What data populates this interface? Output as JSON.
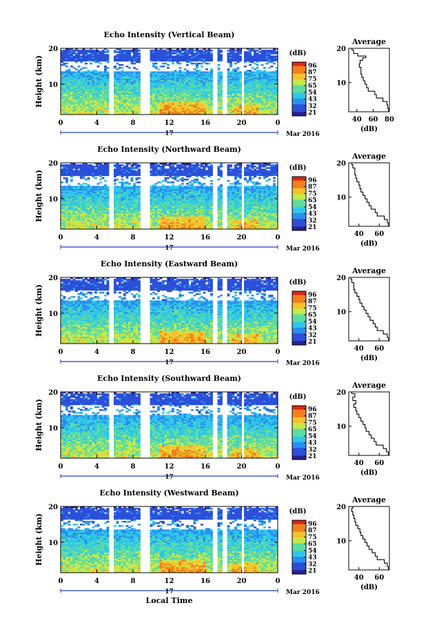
{
  "chart_data": [
    {
      "type": "heatmap",
      "title": "Echo Intensity (Vertical Beam)",
      "ylabel": "Height (km)",
      "x_ticks": [
        "0",
        "4",
        "8",
        "12",
        "16",
        "20",
        "0"
      ],
      "y_ticks": [
        "20",
        "10"
      ],
      "date_label": "17",
      "month_label": "Mar 2016",
      "xlim": [
        0,
        24
      ],
      "ylim": [
        1.5,
        20
      ],
      "colorbar_unit": "(dB)",
      "colorbar_ticks": [
        "96",
        "87",
        "75",
        "65",
        "54",
        "43",
        "32",
        "21"
      ],
      "data_gaps_hours": [
        [
          5.4,
          5.9
        ],
        [
          8.9,
          9.9
        ],
        [
          16.8,
          17.2
        ],
        [
          17.8,
          18.3
        ],
        [
          19.9,
          20.3
        ]
      ],
      "profile": {
        "title": "Average",
        "xlabel": "(dB)",
        "x_ticks": [
          "40",
          "60",
          "80"
        ],
        "xlim": [
          30,
          80
        ],
        "y_ticks": [
          "20",
          "10"
        ],
        "heights": [
          2,
          3,
          4,
          5,
          6,
          7,
          8,
          9,
          10,
          11,
          12,
          13,
          14,
          15,
          16,
          17,
          17.5,
          18,
          19,
          20
        ],
        "values": [
          79,
          78,
          77,
          72,
          64,
          62,
          54,
          52,
          50,
          48,
          46,
          45,
          45,
          43,
          44,
          47,
          51,
          41,
          36,
          34
        ]
      }
    },
    {
      "type": "heatmap",
      "title": "Echo Intensity (Northward Beam)",
      "ylabel": "Height (km)",
      "x_ticks": [
        "0",
        "4",
        "8",
        "12",
        "16",
        "20",
        "0"
      ],
      "y_ticks": [
        "20",
        "10"
      ],
      "date_label": "17",
      "month_label": "Mar 2016",
      "xlim": [
        0,
        24
      ],
      "ylim": [
        1.5,
        20
      ],
      "colorbar_unit": "(dB)",
      "colorbar_ticks": [
        "96",
        "87",
        "75",
        "65",
        "54",
        "43",
        "32",
        "21"
      ],
      "data_gaps_hours": [
        [
          5.4,
          5.9
        ],
        [
          8.9,
          9.9
        ],
        [
          16.8,
          17.2
        ],
        [
          17.8,
          18.3
        ],
        [
          19.9,
          20.3
        ]
      ],
      "profile": {
        "title": "Average",
        "xlabel": "(dB)",
        "x_ticks": [
          "40",
          "60"
        ],
        "xlim": [
          30,
          70
        ],
        "y_ticks": [
          "20",
          "10"
        ],
        "heights": [
          2,
          3,
          4,
          5,
          6,
          7,
          8,
          9,
          10,
          11,
          12,
          13,
          14,
          15,
          16,
          17,
          18,
          19,
          20
        ],
        "values": [
          69,
          68,
          65,
          58,
          56,
          52,
          50,
          48,
          46,
          44,
          42,
          41,
          40,
          38,
          37,
          36,
          36,
          34,
          33
        ]
      }
    },
    {
      "type": "heatmap",
      "title": "Echo Intensity (Eastward Beam)",
      "ylabel": "Height (km)",
      "x_ticks": [
        "0",
        "4",
        "8",
        "12",
        "16",
        "20",
        "0"
      ],
      "y_ticks": [
        "20",
        "10"
      ],
      "date_label": "17",
      "month_label": "Mar 2016",
      "xlim": [
        0,
        24
      ],
      "ylim": [
        1.5,
        20
      ],
      "colorbar_unit": "(dB)",
      "colorbar_ticks": [
        "96",
        "87",
        "75",
        "65",
        "54",
        "43",
        "32",
        "21"
      ],
      "data_gaps_hours": [
        [
          5.4,
          5.9
        ],
        [
          8.9,
          9.9
        ],
        [
          16.8,
          17.2
        ],
        [
          17.8,
          18.3
        ],
        [
          19.9,
          20.3
        ]
      ],
      "profile": {
        "title": "Average",
        "xlabel": "(dB)",
        "x_ticks": [
          "40",
          "60"
        ],
        "xlim": [
          30,
          70
        ],
        "y_ticks": [
          "20",
          "10"
        ],
        "heights": [
          2,
          3,
          4,
          5,
          6,
          7,
          8,
          9,
          10,
          11,
          12,
          13,
          14,
          15,
          16,
          17,
          18,
          19,
          20
        ],
        "values": [
          69,
          68,
          64,
          58,
          56,
          54,
          51,
          49,
          47,
          45,
          43,
          41,
          40,
          38,
          36,
          35,
          35,
          33,
          32
        ]
      }
    },
    {
      "type": "heatmap",
      "title": "Echo Intensity (Southward Beam)",
      "ylabel": "Height (km)",
      "x_ticks": [
        "0",
        "4",
        "8",
        "12",
        "16",
        "20",
        "0"
      ],
      "y_ticks": [
        "20",
        "10"
      ],
      "date_label": "17",
      "month_label": "Mar 2016",
      "xlim": [
        0,
        24
      ],
      "ylim": [
        1.5,
        20
      ],
      "colorbar_unit": "(dB)",
      "colorbar_ticks": [
        "96",
        "87",
        "75",
        "65",
        "54",
        "43",
        "32",
        "21"
      ],
      "data_gaps_hours": [
        [
          5.4,
          5.9
        ],
        [
          8.9,
          9.9
        ],
        [
          16.8,
          17.2
        ],
        [
          17.8,
          18.3
        ],
        [
          19.9,
          20.3
        ]
      ],
      "profile": {
        "title": "Average",
        "xlabel": "(dB)",
        "x_ticks": [
          "40",
          "60"
        ],
        "xlim": [
          30,
          70
        ],
        "y_ticks": [
          "20",
          "10"
        ],
        "heights": [
          2,
          3,
          4,
          5,
          6,
          7,
          8,
          9,
          10,
          11,
          12,
          13,
          14,
          15,
          16,
          17,
          18,
          19,
          20
        ],
        "values": [
          69,
          67,
          64,
          57,
          55,
          52,
          50,
          47,
          46,
          44,
          42,
          40,
          38,
          37,
          35,
          37,
          34,
          36,
          33
        ]
      }
    },
    {
      "type": "heatmap",
      "title": "Echo Intensity (Westward Beam)",
      "ylabel": "Height (km)",
      "x_ticks": [
        "0",
        "4",
        "8",
        "12",
        "16",
        "20",
        "0"
      ],
      "y_ticks": [
        "20",
        "10"
      ],
      "date_label": "17",
      "month_label": "Mar 2016",
      "xlabel": "Local Time",
      "xlim": [
        0,
        24
      ],
      "ylim": [
        1.5,
        20
      ],
      "colorbar_unit": "(dB)",
      "colorbar_ticks": [
        "96",
        "87",
        "75",
        "65",
        "54",
        "43",
        "32",
        "21"
      ],
      "data_gaps_hours": [
        [
          5.4,
          5.9
        ],
        [
          8.9,
          9.9
        ],
        [
          16.8,
          17.2
        ],
        [
          17.8,
          18.3
        ],
        [
          19.9,
          20.3
        ]
      ],
      "profile": {
        "title": "Average",
        "xlabel": "(dB)",
        "x_ticks": [
          "40",
          "60"
        ],
        "xlim": [
          30,
          70
        ],
        "y_ticks": [
          "20",
          "10"
        ],
        "heights": [
          2,
          3,
          4,
          5,
          6,
          7,
          8,
          9,
          10,
          11,
          12,
          13,
          14,
          15,
          16,
          17,
          18,
          19,
          20
        ],
        "values": [
          69,
          68,
          65,
          58,
          56,
          53,
          50,
          48,
          46,
          44,
          42,
          41,
          39,
          37,
          36,
          35,
          34,
          33,
          34
        ]
      }
    }
  ],
  "colors": {
    "colormap": [
      "#2a1f8f",
      "#2c4fd8",
      "#2a8ff0",
      "#2fc7e8",
      "#5fdca0",
      "#c8e84a",
      "#f6c22a",
      "#f07f1e",
      "#d8281a"
    ],
    "no_data": "#ffffff",
    "axis": "#000000",
    "timeline": "#1f3fbf"
  }
}
